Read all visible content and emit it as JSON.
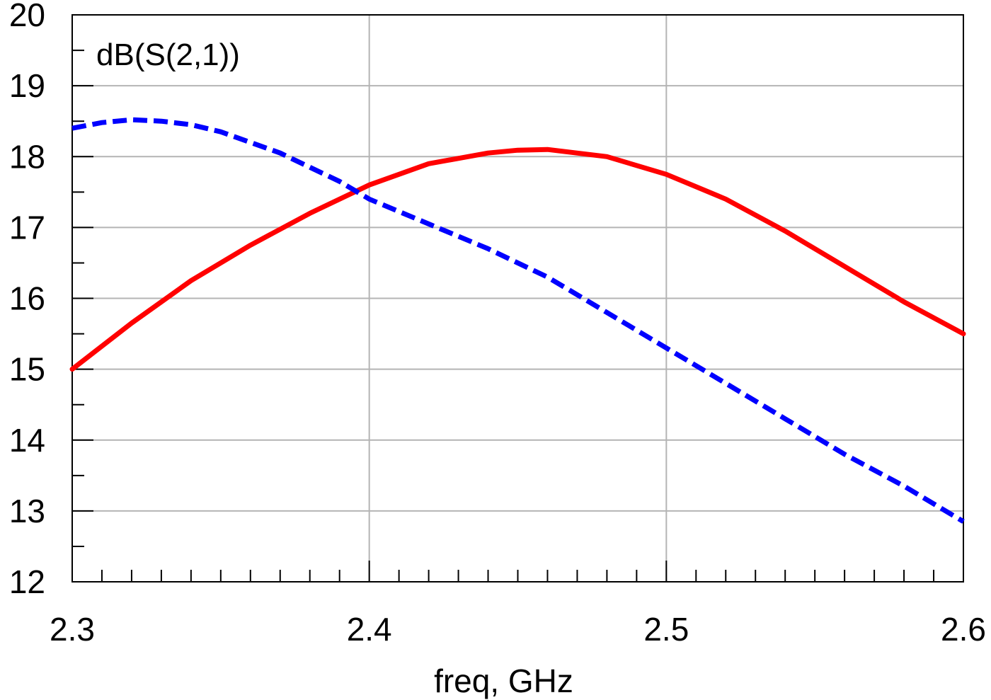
{
  "chart_data": {
    "type": "line",
    "title": "dB(S(2,1))",
    "xlabel": "freq, GHz",
    "ylabel": "",
    "xlim": [
      2.3,
      2.6
    ],
    "ylim": [
      12,
      20
    ],
    "x_ticks": [
      2.3,
      2.4,
      2.5,
      2.6
    ],
    "x_tick_labels": [
      "2.3",
      "2.4",
      "2.5",
      "2.6"
    ],
    "y_ticks": [
      12,
      13,
      14,
      15,
      16,
      17,
      18,
      19,
      20
    ],
    "y_tick_labels": [
      "12",
      "13",
      "14",
      "15",
      "16",
      "17",
      "18",
      "19",
      "20"
    ],
    "x_minor_step": 0.01,
    "y_minor_step": 0.5,
    "grid": true,
    "series": [
      {
        "style": "solid",
        "color": "#ff0000",
        "x": [
          2.3,
          2.32,
          2.34,
          2.36,
          2.38,
          2.4,
          2.42,
          2.44,
          2.45,
          2.46,
          2.48,
          2.5,
          2.52,
          2.54,
          2.56,
          2.58,
          2.6
        ],
        "y": [
          15.0,
          15.65,
          16.25,
          16.75,
          17.2,
          17.6,
          17.9,
          18.05,
          18.09,
          18.1,
          18.0,
          17.75,
          17.4,
          16.95,
          16.45,
          15.95,
          15.5
        ]
      },
      {
        "style": "dashed",
        "color": "#0000ff",
        "x": [
          2.3,
          2.31,
          2.32,
          2.33,
          2.34,
          2.35,
          2.36,
          2.37,
          2.38,
          2.39,
          2.4,
          2.42,
          2.44,
          2.46,
          2.48,
          2.5,
          2.52,
          2.54,
          2.56,
          2.58,
          2.6
        ],
        "y": [
          18.4,
          18.48,
          18.52,
          18.5,
          18.45,
          18.35,
          18.2,
          18.05,
          17.85,
          17.65,
          17.4,
          17.05,
          16.7,
          16.3,
          15.8,
          15.3,
          14.8,
          14.3,
          13.8,
          13.35,
          12.85
        ]
      }
    ]
  }
}
